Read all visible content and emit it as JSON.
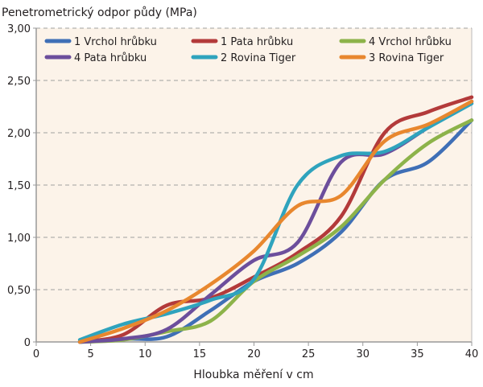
{
  "chart_data": {
    "type": "line",
    "title": "Penetrometrický odpor půdy (MPa)",
    "xlabel": "Hloubka měření v cm",
    "ylabel": "",
    "xlim": [
      0,
      40
    ],
    "ylim": [
      0,
      3
    ],
    "x_ticks": [
      "0",
      "5",
      "10",
      "15",
      "20",
      "25",
      "30",
      "35",
      "40"
    ],
    "y_ticks": [
      "0",
      "0,50",
      "1,00",
      "1,50",
      "2,00",
      "2,50",
      "3,00"
    ],
    "grid": "horizontal dashed",
    "legend_position": "top",
    "background": "#fcf3e9",
    "x": [
      4,
      8,
      12,
      16,
      20,
      24,
      28,
      32,
      36,
      40
    ],
    "series": [
      {
        "name": "1 Vrchol hrůbku",
        "color": "#3f6fb6",
        "values": [
          0.0,
          0.03,
          0.05,
          0.3,
          0.58,
          0.75,
          1.05,
          1.55,
          1.72,
          2.12
        ]
      },
      {
        "name": "1 Pata hrůbku",
        "color": "#b33a3a",
        "values": [
          0.0,
          0.07,
          0.35,
          0.42,
          0.62,
          0.85,
          1.2,
          2.0,
          2.2,
          2.34
        ]
      },
      {
        "name": "4 Vrchol hrůbku",
        "color": "#8db34a",
        "values": [
          0.0,
          0.02,
          0.1,
          0.2,
          0.58,
          0.82,
          1.1,
          1.55,
          1.9,
          2.12
        ]
      },
      {
        "name": "4 Pata hrůbku",
        "color": "#6c4e9c",
        "values": [
          0.0,
          0.03,
          0.12,
          0.45,
          0.78,
          0.95,
          1.72,
          1.8,
          2.05,
          2.3
        ]
      },
      {
        "name": "2 Rovina Tiger",
        "color": "#2fa3bd",
        "values": [
          0.02,
          0.17,
          0.27,
          0.4,
          0.6,
          1.5,
          1.78,
          1.82,
          2.05,
          2.28
        ]
      },
      {
        "name": "3 Rovina Tiger",
        "color": "#e8872e",
        "values": [
          0.0,
          0.13,
          0.3,
          0.55,
          0.87,
          1.3,
          1.4,
          1.92,
          2.08,
          2.3
        ]
      }
    ]
  }
}
